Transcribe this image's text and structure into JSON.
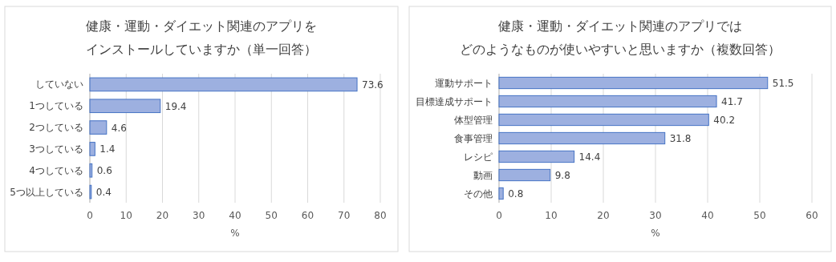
{
  "chart_data": [
    {
      "type": "bar",
      "orientation": "horizontal",
      "title": "健康・運動・ダイエット関連のアプリを",
      "subtitle": "インストールしていますか（単一回答）",
      "xlabel": "%",
      "categories": [
        "していない",
        "1つしている",
        "2つしている",
        "3つしている",
        "4つしている",
        "5つ以上している"
      ],
      "values": [
        73.6,
        19.4,
        4.6,
        1.4,
        0.6,
        0.4
      ],
      "color": "#9db0e0",
      "xlim": [
        0,
        80
      ],
      "xticks": [
        0,
        10,
        20,
        30,
        40,
        50,
        60,
        70,
        80
      ],
      "grid": "x",
      "data_labels": true
    },
    {
      "type": "bar",
      "orientation": "horizontal",
      "title": "健康・運動・ダイエット関連のアプリでは",
      "subtitle": "どのようなものが使いやすいと思いますか（複数回答）",
      "xlabel": "%",
      "categories": [
        "運動サポート",
        "目標達成サポート",
        "体型管理",
        "食事管理",
        "レシピ",
        "動画",
        "その他"
      ],
      "values": [
        51.5,
        41.7,
        40.2,
        31.8,
        14.4,
        9.8,
        0.8
      ],
      "color": "#9db0e0",
      "xlim": [
        0,
        60
      ],
      "xticks": [
        0,
        10,
        20,
        30,
        40,
        50,
        60
      ],
      "grid": "x",
      "data_labels": true
    }
  ]
}
